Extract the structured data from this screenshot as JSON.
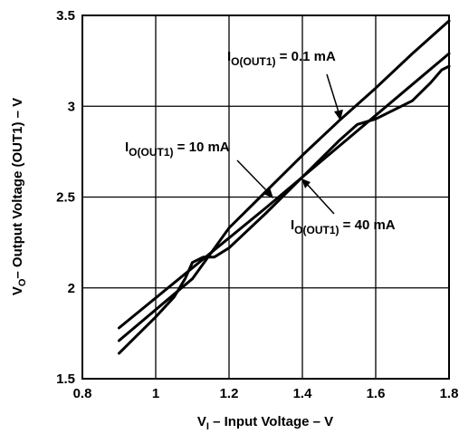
{
  "chart_data": {
    "type": "line",
    "xlabel": {
      "prefix": "V",
      "sub": "I",
      "suffix": " – Input Voltage – V"
    },
    "ylabel": {
      "prefix": "V",
      "sub": "O",
      "suffix": "– Output Voltage (OUT1) – V"
    },
    "xlim": [
      0.8,
      1.8
    ],
    "ylim": [
      1.5,
      3.5
    ],
    "x_ticks": [
      "0.8",
      "1",
      "1.2",
      "1.4",
      "1.6",
      "1.8"
    ],
    "y_ticks": [
      "1.5",
      "2",
      "2.5",
      "3",
      "3.5"
    ],
    "grid": true,
    "series": [
      {
        "name": "I_O(OUT1) = 0.1 mA",
        "points": [
          [
            0.9,
            1.78
          ],
          [
            1.1,
            2.11
          ],
          [
            1.3,
            2.44
          ],
          [
            1.5,
            2.78
          ],
          [
            1.7,
            3.12
          ],
          [
            1.8,
            3.29
          ]
        ]
      },
      {
        "name": "I_O(OUT1) = 10 mA",
        "points": [
          [
            0.9,
            1.71
          ],
          [
            1.1,
            2.05
          ],
          [
            1.2,
            2.33
          ],
          [
            1.3,
            2.53
          ],
          [
            1.4,
            2.73
          ],
          [
            1.5,
            2.92
          ],
          [
            1.6,
            3.1
          ],
          [
            1.7,
            3.29
          ],
          [
            1.8,
            3.47
          ]
        ]
      },
      {
        "name": "I_O(OUT1) = 40 mA",
        "points": [
          [
            0.9,
            1.64
          ],
          [
            1.0,
            1.84
          ],
          [
            1.05,
            1.95
          ],
          [
            1.08,
            2.05
          ],
          [
            1.1,
            2.14
          ],
          [
            1.13,
            2.17
          ],
          [
            1.16,
            2.17
          ],
          [
            1.2,
            2.22
          ],
          [
            1.3,
            2.41
          ],
          [
            1.4,
            2.61
          ],
          [
            1.5,
            2.81
          ],
          [
            1.55,
            2.9
          ],
          [
            1.6,
            2.93
          ],
          [
            1.7,
            3.03
          ],
          [
            1.75,
            3.13
          ],
          [
            1.78,
            3.2
          ],
          [
            1.8,
            3.22
          ]
        ]
      }
    ],
    "annotations": [
      {
        "prefix": "I",
        "sub": "O(OUT1)",
        "suffix": " = 0.1 mA"
      },
      {
        "prefix": "I",
        "sub": "O(OUT1)",
        "suffix": " = 10 mA"
      },
      {
        "prefix": "I",
        "sub": "O(OUT1)",
        "suffix": " = 40 mA"
      }
    ]
  }
}
